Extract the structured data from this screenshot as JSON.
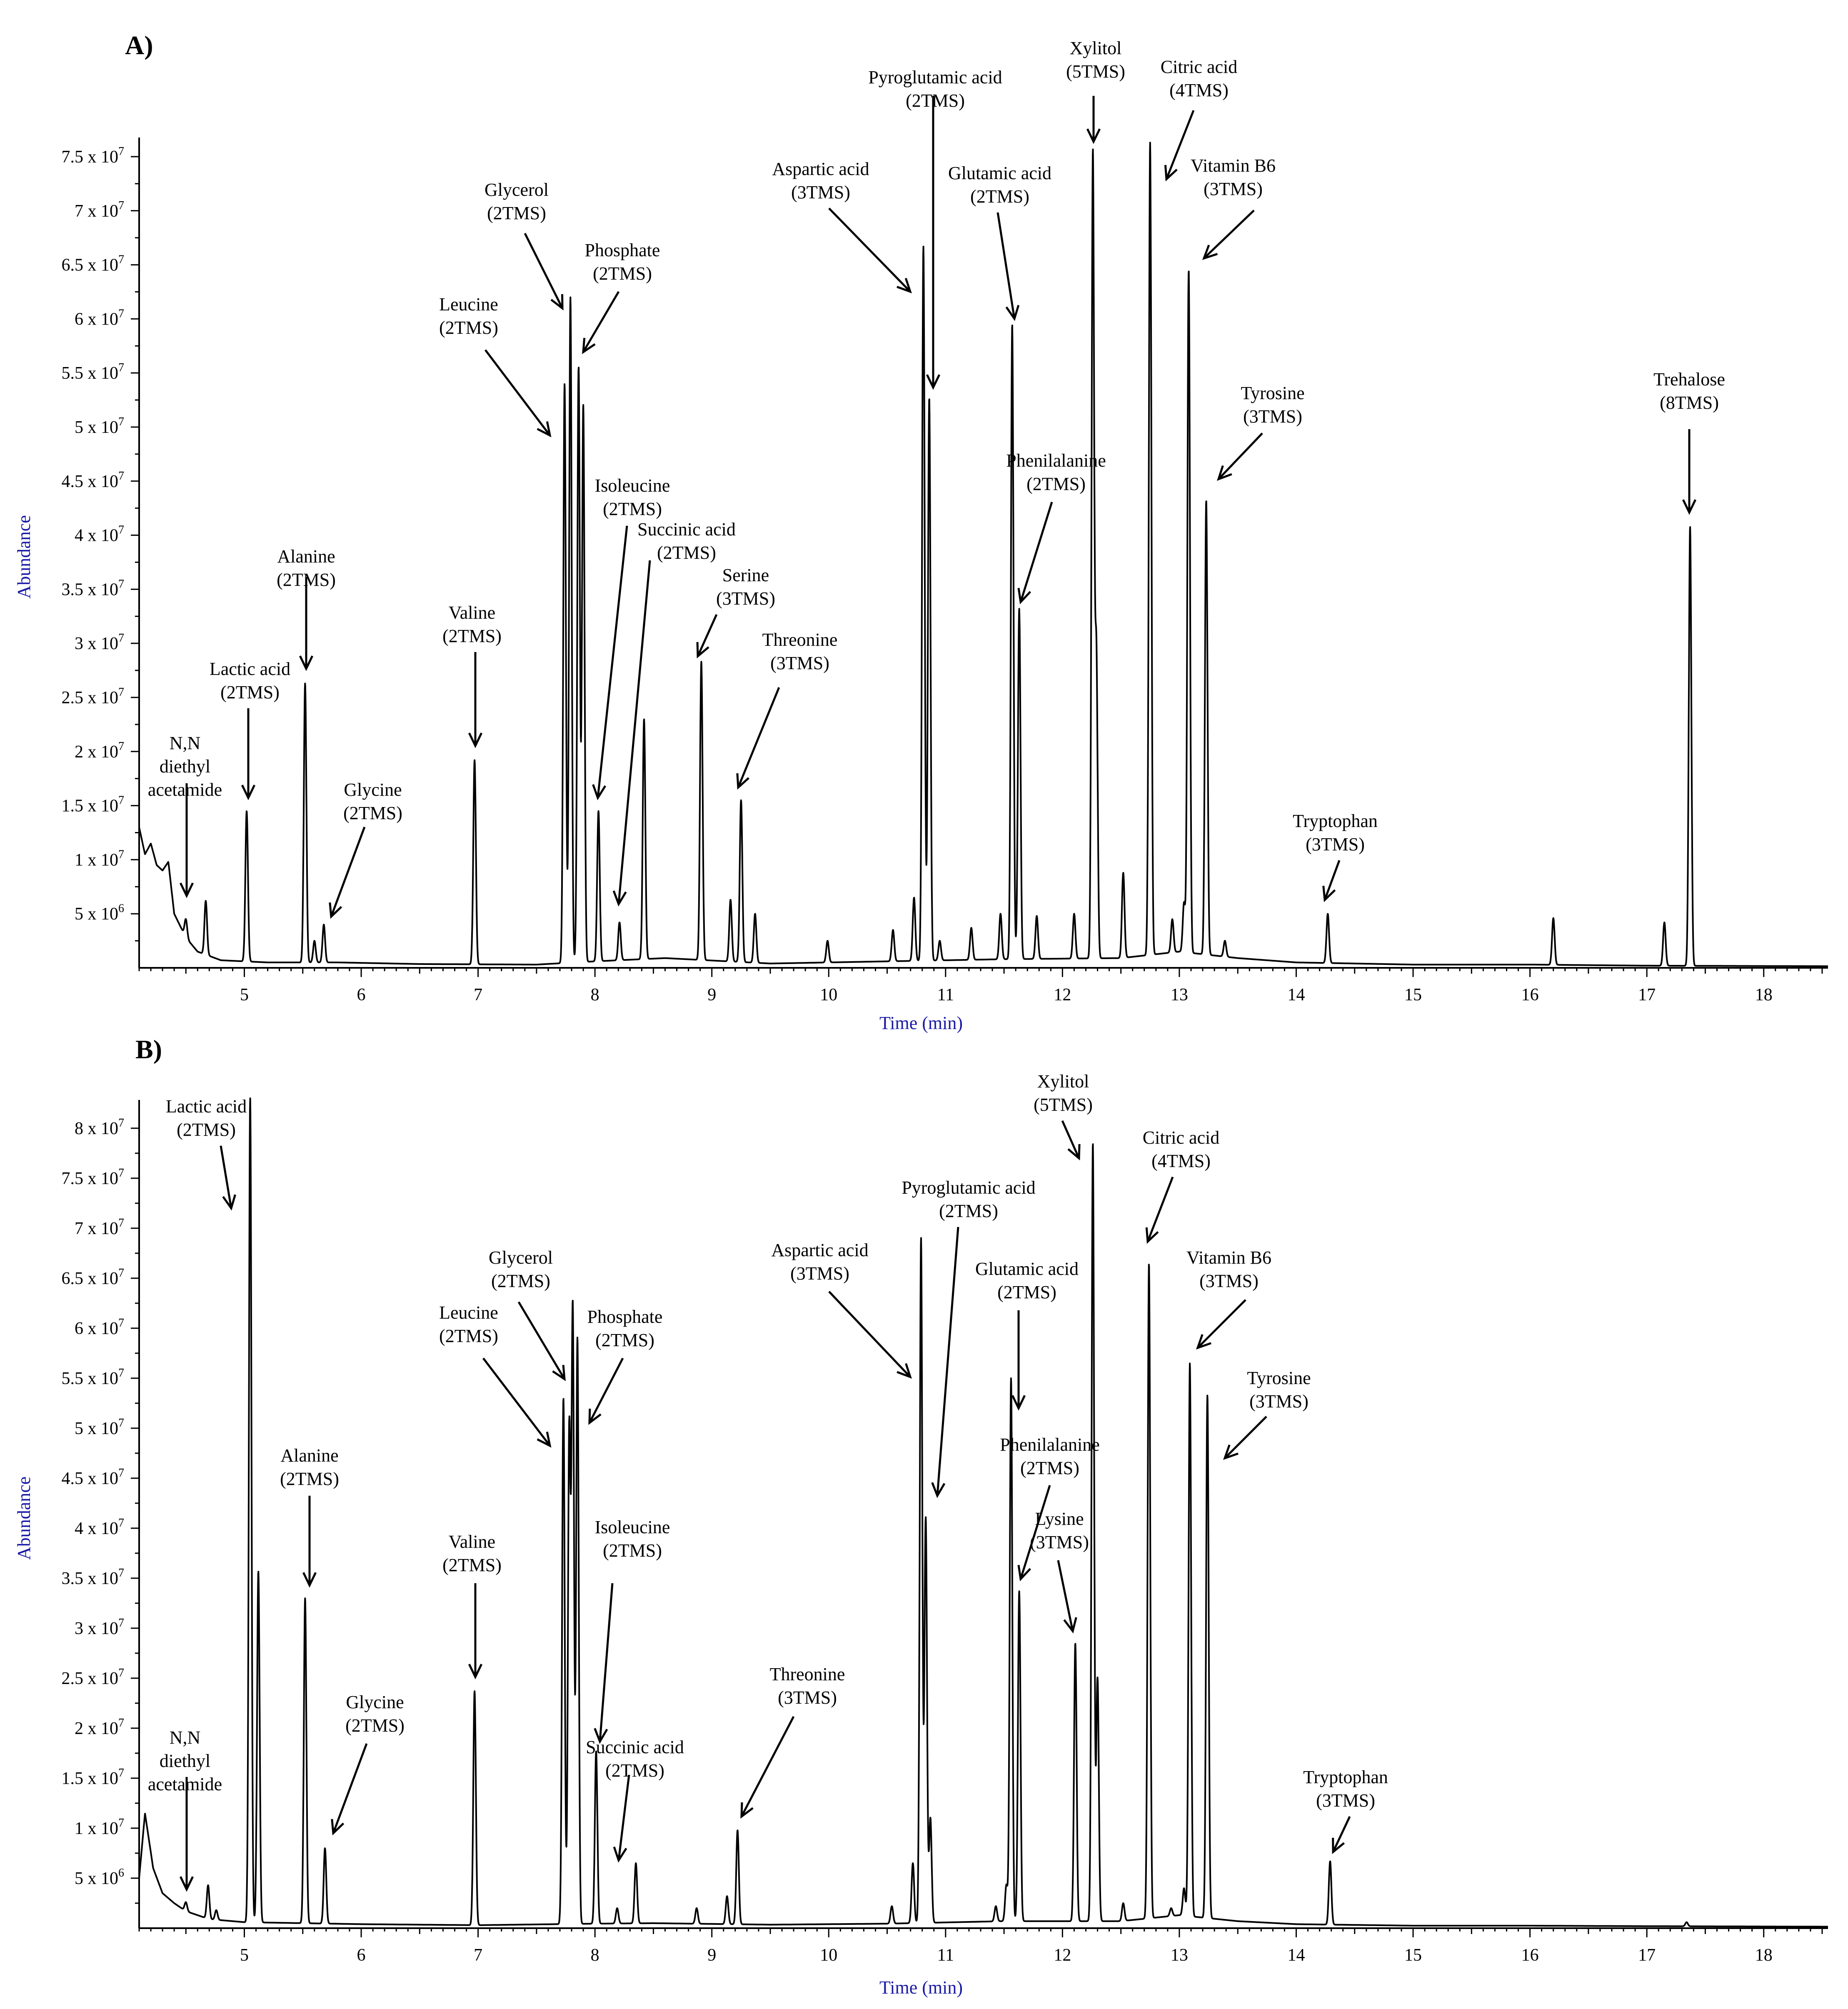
{
  "panels": [
    {
      "letter": "A)",
      "xlabel": "Time (min)",
      "ylabel": "Abundance",
      "x_ticks": [
        "5",
        "6",
        "7",
        "8",
        "9",
        "10",
        "11",
        "12",
        "13",
        "14",
        "15",
        "16",
        "17",
        "18"
      ],
      "y_ticks": [
        {
          "mant": "5 x 10",
          "exp": "6"
        },
        {
          "mant": "1 x 10",
          "exp": "7"
        },
        {
          "mant": "1.5 x 10",
          "exp": "7"
        },
        {
          "mant": "2 x 10",
          "exp": "7"
        },
        {
          "mant": "2.5 x 10",
          "exp": "7"
        },
        {
          "mant": "3 x 10",
          "exp": "7"
        },
        {
          "mant": "3.5 x 10",
          "exp": "7"
        },
        {
          "mant": "4 x 10",
          "exp": "7"
        },
        {
          "mant": "4.5 x 10",
          "exp": "7"
        },
        {
          "mant": "5 x 10",
          "exp": "7"
        },
        {
          "mant": "5.5 x 10",
          "exp": "7"
        },
        {
          "mant": "6 x 10",
          "exp": "7"
        },
        {
          "mant": "6.5 x 10",
          "exp": "7"
        },
        {
          "mant": "7 x 10",
          "exp": "7"
        },
        {
          "mant": "7.5 x 10",
          "exp": "7"
        }
      ],
      "annotations": [
        {
          "lines": [
            "N,N",
            "diethyl",
            "acetamide"
          ]
        },
        {
          "lines": [
            "Lactic acid",
            "(2TMS)"
          ]
        },
        {
          "lines": [
            "Alanine",
            "(2TMS)"
          ]
        },
        {
          "lines": [
            "Glycine",
            "(2TMS)"
          ]
        },
        {
          "lines": [
            "Valine",
            "(2TMS)"
          ]
        },
        {
          "lines": [
            "Leucine",
            "(2TMS)"
          ]
        },
        {
          "lines": [
            "Glycerol",
            "(2TMS)"
          ]
        },
        {
          "lines": [
            "Phosphate",
            "(2TMS)"
          ]
        },
        {
          "lines": [
            "Isoleucine",
            "(2TMS)"
          ]
        },
        {
          "lines": [
            "Succinic acid",
            "(2TMS)"
          ]
        },
        {
          "lines": [
            "Serine",
            "(3TMS)"
          ]
        },
        {
          "lines": [
            "Threonine",
            "(3TMS)"
          ]
        },
        {
          "lines": [
            "Aspartic acid",
            "(3TMS)"
          ]
        },
        {
          "lines": [
            "Pyroglutamic acid",
            "(2TMS)"
          ]
        },
        {
          "lines": [
            "Glutamic acid",
            "(2TMS)"
          ]
        },
        {
          "lines": [
            "Phenilalanine",
            "(2TMS)"
          ]
        },
        {
          "lines": [
            "Xylitol",
            "(5TMS)"
          ]
        },
        {
          "lines": [
            "Citric acid",
            "(4TMS)"
          ]
        },
        {
          "lines": [
            "Vitamin B6",
            "(3TMS)"
          ]
        },
        {
          "lines": [
            "Tyrosine",
            "(3TMS)"
          ]
        },
        {
          "lines": [
            "Tryptophan",
            "(3TMS)"
          ]
        },
        {
          "lines": [
            "Trehalose",
            "(8TMS)"
          ]
        }
      ]
    },
    {
      "letter": "B)",
      "xlabel": "Time (min)",
      "ylabel": "Abundance",
      "x_ticks": [
        "5",
        "6",
        "7",
        "8",
        "9",
        "10",
        "11",
        "12",
        "13",
        "14",
        "15",
        "16",
        "17",
        "18"
      ],
      "y_ticks": [
        {
          "mant": "5 x 10",
          "exp": "6"
        },
        {
          "mant": "1 x 10",
          "exp": "7"
        },
        {
          "mant": "1.5 x 10",
          "exp": "7"
        },
        {
          "mant": "2 x 10",
          "exp": "7"
        },
        {
          "mant": "2.5 x 10",
          "exp": "7"
        },
        {
          "mant": "3 x 10",
          "exp": "7"
        },
        {
          "mant": "3.5 x 10",
          "exp": "7"
        },
        {
          "mant": "4 x 10",
          "exp": "7"
        },
        {
          "mant": "4.5 x 10",
          "exp": "7"
        },
        {
          "mant": "5 x 10",
          "exp": "7"
        },
        {
          "mant": "5.5 x 10",
          "exp": "7"
        },
        {
          "mant": "6 x 10",
          "exp": "7"
        },
        {
          "mant": "6.5 x 10",
          "exp": "7"
        },
        {
          "mant": "7 x 10",
          "exp": "7"
        },
        {
          "mant": "7.5 x 10",
          "exp": "7"
        },
        {
          "mant": "8 x 10",
          "exp": "7"
        }
      ],
      "annotations": [
        {
          "lines": [
            "N,N",
            "diethyl",
            "acetamide"
          ]
        },
        {
          "lines": [
            "Lactic acid",
            "(2TMS)"
          ]
        },
        {
          "lines": [
            "Alanine",
            "(2TMS)"
          ]
        },
        {
          "lines": [
            "Glycine",
            "(2TMS)"
          ]
        },
        {
          "lines": [
            "Valine",
            "(2TMS)"
          ]
        },
        {
          "lines": [
            "Leucine",
            "(2TMS)"
          ]
        },
        {
          "lines": [
            "Glycerol",
            "(2TMS)"
          ]
        },
        {
          "lines": [
            "Phosphate",
            "(2TMS)"
          ]
        },
        {
          "lines": [
            "Isoleucine",
            "(2TMS)"
          ]
        },
        {
          "lines": [
            "Succinic acid",
            "(2TMS)"
          ]
        },
        {
          "lines": [
            "Threonine",
            "(3TMS)"
          ]
        },
        {
          "lines": [
            "Aspartic acid",
            "(3TMS)"
          ]
        },
        {
          "lines": [
            "Pyroglutamic acid",
            "(2TMS)"
          ]
        },
        {
          "lines": [
            "Glutamic acid",
            "(2TMS)"
          ]
        },
        {
          "lines": [
            "Phenilalanine",
            "(2TMS)"
          ]
        },
        {
          "lines": [
            "Lysine",
            "(3TMS)"
          ]
        },
        {
          "lines": [
            "Xylitol",
            "(5TMS)"
          ]
        },
        {
          "lines": [
            "Citric acid",
            "(4TMS)"
          ]
        },
        {
          "lines": [
            "Vitamin B6",
            "(3TMS)"
          ]
        },
        {
          "lines": [
            "Tyrosine",
            "(3TMS)"
          ]
        },
        {
          "lines": [
            "Tryptophan",
            "(3TMS)"
          ]
        }
      ]
    }
  ],
  "chart_data": [
    {
      "type": "line",
      "title": "",
      "xlabel": "Time (min)",
      "ylabel": "Abundance",
      "xlim": [
        4.1,
        18.55
      ],
      "ylim": [
        0,
        76000000
      ],
      "baseline_points": [
        [
          4.1,
          13000000
        ],
        [
          4.15,
          10500000
        ],
        [
          4.2,
          11500000
        ],
        [
          4.25,
          9500000
        ],
        [
          4.3,
          9000000
        ],
        [
          4.35,
          9800000
        ],
        [
          4.4,
          5000000
        ],
        [
          4.5,
          2800000
        ],
        [
          4.6,
          1500000
        ],
        [
          4.8,
          700000
        ],
        [
          5.2,
          500000
        ],
        [
          5.8,
          500000
        ],
        [
          6.5,
          350000
        ],
        [
          7.5,
          300000
        ],
        [
          8.0,
          600000
        ],
        [
          8.6,
          900000
        ],
        [
          9.5,
          400000
        ],
        [
          10.5,
          600000
        ],
        [
          11.5,
          800000
        ],
        [
          12.5,
          900000
        ],
        [
          13.0,
          1500000
        ],
        [
          13.5,
          900000
        ],
        [
          14.0,
          500000
        ],
        [
          15.0,
          300000
        ],
        [
          16.0,
          300000
        ],
        [
          17.0,
          200000
        ],
        [
          18.55,
          150000
        ]
      ],
      "peaks": [
        {
          "x": 4.5,
          "y": 4500000,
          "label": "N,N diethyl acetamide"
        },
        {
          "x": 4.67,
          "y": 6200000
        },
        {
          "x": 5.02,
          "y": 14500000,
          "label": "Lactic acid (2TMS)"
        },
        {
          "x": 5.52,
          "y": 26300000,
          "label": "Alanine (2TMS)"
        },
        {
          "x": 5.6,
          "y": 2500000
        },
        {
          "x": 5.68,
          "y": 4000000,
          "label": "Glycine (2TMS)"
        },
        {
          "x": 6.97,
          "y": 19200000,
          "label": "Valine (2TMS)"
        },
        {
          "x": 7.74,
          "y": 54000000,
          "label": "Leucine (2TMS)"
        },
        {
          "x": 7.79,
          "y": 62000000,
          "label": "Glycerol (2TMS)"
        },
        {
          "x": 7.86,
          "y": 55500000,
          "label": "Phosphate (2TMS)"
        },
        {
          "x": 7.9,
          "y": 52000000
        },
        {
          "x": 8.03,
          "y": 14500000,
          "label": "Isoleucine (2TMS)"
        },
        {
          "x": 8.21,
          "y": 4200000,
          "label": "Succinic acid (2TMS)"
        },
        {
          "x": 8.42,
          "y": 23000000
        },
        {
          "x": 8.91,
          "y": 28300000,
          "label": "Serine (3TMS)"
        },
        {
          "x": 9.16,
          "y": 6300000
        },
        {
          "x": 9.25,
          "y": 15500000,
          "label": "Threonine (3TMS)"
        },
        {
          "x": 9.37,
          "y": 5000000
        },
        {
          "x": 9.99,
          "y": 2500000
        },
        {
          "x": 10.55,
          "y": 3500000
        },
        {
          "x": 10.73,
          "y": 6500000
        },
        {
          "x": 10.81,
          "y": 66700000,
          "label": "Aspartic acid (3TMS)"
        },
        {
          "x": 10.86,
          "y": 52700000,
          "label": "Pyroglutamic acid (2TMS)"
        },
        {
          "x": 10.95,
          "y": 2500000
        },
        {
          "x": 11.22,
          "y": 3700000
        },
        {
          "x": 11.47,
          "y": 5000000
        },
        {
          "x": 11.57,
          "y": 59500000,
          "label": "Glutamic acid (2TMS)"
        },
        {
          "x": 11.63,
          "y": 33200000,
          "label": "Phenilalanine (2TMS)"
        },
        {
          "x": 11.78,
          "y": 4800000
        },
        {
          "x": 12.1,
          "y": 5000000
        },
        {
          "x": 12.26,
          "y": 75000000,
          "label": "Xylitol (5TMS)"
        },
        {
          "x": 12.29,
          "y": 29000000
        },
        {
          "x": 12.52,
          "y": 8800000
        },
        {
          "x": 12.75,
          "y": 76300000,
          "label": "Citric acid (4TMS)"
        },
        {
          "x": 12.94,
          "y": 4500000
        },
        {
          "x": 13.04,
          "y": 6000000
        },
        {
          "x": 13.08,
          "y": 64500000,
          "label": "Vitamin B6 (3TMS)"
        },
        {
          "x": 13.23,
          "y": 43200000,
          "label": "Tyrosine (3TMS)"
        },
        {
          "x": 13.39,
          "y": 2500000
        },
        {
          "x": 14.27,
          "y": 5000000,
          "label": "Tryptophan (3TMS)"
        },
        {
          "x": 16.2,
          "y": 4600000
        },
        {
          "x": 17.15,
          "y": 4200000
        },
        {
          "x": 17.37,
          "y": 40800000,
          "label": "Trehalose (8TMS)"
        }
      ]
    },
    {
      "type": "line",
      "title": "",
      "xlabel": "Time (min)",
      "ylabel": "Abundance",
      "xlim": [
        4.1,
        18.55
      ],
      "ylim": [
        0,
        82000000
      ],
      "baseline_points": [
        [
          4.1,
          5000000
        ],
        [
          4.15,
          11500000
        ],
        [
          4.22,
          6000000
        ],
        [
          4.3,
          3500000
        ],
        [
          4.4,
          2500000
        ],
        [
          4.5,
          1700000
        ],
        [
          4.7,
          900000
        ],
        [
          5.0,
          600000
        ],
        [
          5.5,
          500000
        ],
        [
          6.0,
          400000
        ],
        [
          7.0,
          300000
        ],
        [
          8.0,
          450000
        ],
        [
          8.5,
          500000
        ],
        [
          9.5,
          350000
        ],
        [
          10.5,
          450000
        ],
        [
          11.5,
          700000
        ],
        [
          12.5,
          700000
        ],
        [
          13.0,
          1300000
        ],
        [
          13.5,
          700000
        ],
        [
          14.0,
          400000
        ],
        [
          15.0,
          250000
        ],
        [
          16.0,
          250000
        ],
        [
          17.0,
          200000
        ],
        [
          18.55,
          150000
        ]
      ],
      "peaks": [
        {
          "x": 4.5,
          "y": 2600000,
          "label": "N,N diethyl acetamide"
        },
        {
          "x": 4.69,
          "y": 4300000
        },
        {
          "x": 4.76,
          "y": 1800000
        },
        {
          "x": 5.05,
          "y": 83000000,
          "label": "Lactic acid (2TMS)"
        },
        {
          "x": 5.12,
          "y": 35700000
        },
        {
          "x": 5.52,
          "y": 33000000,
          "label": "Alanine (2TMS)"
        },
        {
          "x": 5.69,
          "y": 8000000,
          "label": "Glycine (2TMS)"
        },
        {
          "x": 6.97,
          "y": 23700000,
          "label": "Valine (2TMS)"
        },
        {
          "x": 7.73,
          "y": 53000000,
          "label": "Leucine (2TMS)"
        },
        {
          "x": 7.78,
          "y": 49500000
        },
        {
          "x": 7.81,
          "y": 61500000,
          "label": "Glycerol (2TMS)"
        },
        {
          "x": 7.85,
          "y": 59000000,
          "label": "Phosphate (2TMS)"
        },
        {
          "x": 8.01,
          "y": 17700000,
          "label": "Isoleucine (2TMS)"
        },
        {
          "x": 8.19,
          "y": 2000000,
          "label": "Succinic acid (2TMS)"
        },
        {
          "x": 8.35,
          "y": 6500000
        },
        {
          "x": 8.87,
          "y": 2000000
        },
        {
          "x": 9.13,
          "y": 3200000
        },
        {
          "x": 9.22,
          "y": 9800000,
          "label": "Threonine (3TMS)"
        },
        {
          "x": 10.54,
          "y": 2200000
        },
        {
          "x": 10.72,
          "y": 6500000
        },
        {
          "x": 10.79,
          "y": 69000000,
          "label": "Aspartic acid (3TMS)"
        },
        {
          "x": 10.83,
          "y": 41000000,
          "label": "Pyroglutamic acid (2TMS)"
        },
        {
          "x": 10.87,
          "y": 11000000
        },
        {
          "x": 11.43,
          "y": 2200000
        },
        {
          "x": 11.52,
          "y": 4300000
        },
        {
          "x": 11.56,
          "y": 55000000,
          "label": "Glutamic acid (2TMS)"
        },
        {
          "x": 11.63,
          "y": 33700000,
          "label": "Phenilalanine (2TMS)"
        },
        {
          "x": 12.11,
          "y": 28500000,
          "label": "Lysine (3TMS)"
        },
        {
          "x": 12.26,
          "y": 78500000,
          "label": "Xylitol (5TMS)"
        },
        {
          "x": 12.3,
          "y": 25000000
        },
        {
          "x": 12.52,
          "y": 2500000
        },
        {
          "x": 12.74,
          "y": 66500000,
          "label": "Citric acid (4TMS)"
        },
        {
          "x": 12.93,
          "y": 2000000
        },
        {
          "x": 13.04,
          "y": 4000000
        },
        {
          "x": 13.09,
          "y": 56500000,
          "label": "Vitamin B6 (3TMS)"
        },
        {
          "x": 13.24,
          "y": 53300000,
          "label": "Tyrosine (3TMS)"
        },
        {
          "x": 14.29,
          "y": 6700000,
          "label": "Tryptophan (3TMS)"
        },
        {
          "x": 17.34,
          "y": 600000
        }
      ]
    }
  ]
}
